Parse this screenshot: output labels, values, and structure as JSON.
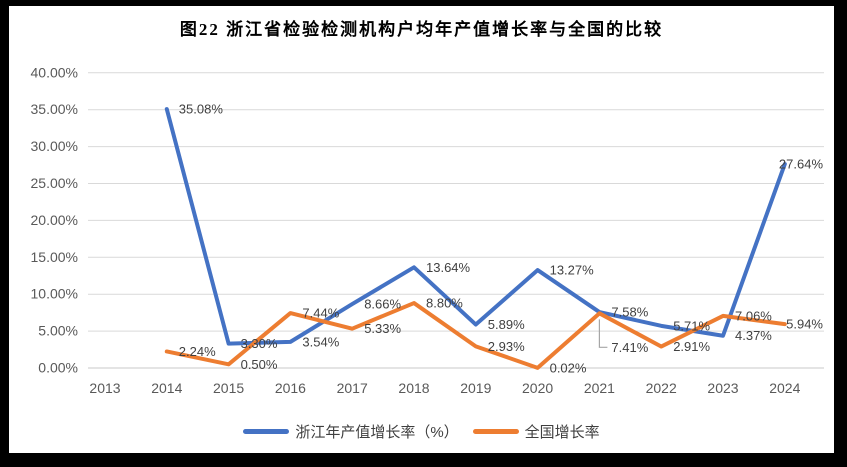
{
  "title": "图22 浙江省检验检测机构户均年产值增长率与全国的比较",
  "chart_data": {
    "type": "line",
    "title": "图22 浙江省检验检测机构户均年产值增长率与全国的比较",
    "categories": [
      "2013",
      "2014",
      "2015",
      "2016",
      "2017",
      "2018",
      "2019",
      "2020",
      "2021",
      "2022",
      "2023",
      "2024"
    ],
    "series": [
      {
        "name": "浙江年产值增长率（%）",
        "color": "#4472C4",
        "values": [
          null,
          35.08,
          3.3,
          3.54,
          8.66,
          13.64,
          5.89,
          13.27,
          7.58,
          5.71,
          4.37,
          27.64
        ]
      },
      {
        "name": "全国增长率",
        "color": "#ED7D31",
        "values": [
          null,
          2.24,
          0.5,
          7.44,
          5.33,
          8.8,
          2.93,
          0.02,
          7.41,
          2.91,
          7.06,
          5.94
        ],
        "leader_label_index": 8
      }
    ],
    "y_ticks": [
      "40.00%",
      "35.00%",
      "30.00%",
      "25.00%",
      "20.00%",
      "15.00%",
      "10.00%",
      "5.00%",
      "0.00%"
    ],
    "ylim": [
      0,
      40
    ],
    "xlabel": "",
    "ylabel": "",
    "grid": true,
    "legend_position": "bottom",
    "data_label_format": "0.00%",
    "data_label_placement": "right-of-point"
  },
  "legend": {
    "items": [
      {
        "label": "浙江年产值增长率（%）"
      },
      {
        "label": "全国增长率"
      }
    ]
  },
  "colors": {
    "zhejiang_line": "#4472C4",
    "national_line": "#ED7D31",
    "gridline": "#D9D9D9",
    "axis_line": "#C9C9C9",
    "axis_text": "#595959",
    "data_label_text": "#404040",
    "leader_line": "#A6A6A6",
    "title_text": "#000000",
    "frame": "#000000",
    "chart_background": "#FFFFFF"
  }
}
